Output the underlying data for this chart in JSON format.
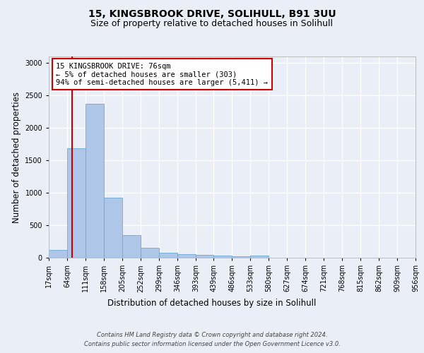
{
  "title_line1": "15, KINGSBROOK DRIVE, SOLIHULL, B91 3UU",
  "title_line2": "Size of property relative to detached houses in Solihull",
  "xlabel": "Distribution of detached houses by size in Solihull",
  "ylabel": "Number of detached properties",
  "footer_line1": "Contains HM Land Registry data © Crown copyright and database right 2024.",
  "footer_line2": "Contains public sector information licensed under the Open Government Licence v3.0.",
  "bin_edges": [
    17,
    64,
    111,
    158,
    205,
    252,
    299,
    346,
    393,
    439,
    486,
    533,
    580,
    627,
    674,
    721,
    768,
    815,
    862,
    909,
    956
  ],
  "bar_heights": [
    120,
    1690,
    2370,
    920,
    345,
    155,
    80,
    55,
    45,
    30,
    25,
    30,
    0,
    0,
    0,
    0,
    0,
    0,
    0,
    0
  ],
  "bar_color": "#aec6e8",
  "bar_edge_color": "#6aaad4",
  "property_size": 76,
  "red_line_color": "#cc0000",
  "annotation_line1": "15 KINGSBROOK DRIVE: 76sqm",
  "annotation_line2": "← 5% of detached houses are smaller (303)",
  "annotation_line3": "94% of semi-detached houses are larger (5,411) →",
  "annotation_box_color": "#ffffff",
  "annotation_box_edge_color": "#cc0000",
  "ylim": [
    0,
    3100
  ],
  "yticks": [
    0,
    500,
    1000,
    1500,
    2000,
    2500,
    3000
  ],
  "bg_color": "#eaeff7",
  "plot_bg_color": "#eaeff7",
  "grid_color": "#ffffff",
  "title_fontsize": 10,
  "subtitle_fontsize": 9,
  "axis_label_fontsize": 8.5,
  "tick_fontsize": 7,
  "annotation_fontsize": 7.5,
  "footer_fontsize": 6
}
